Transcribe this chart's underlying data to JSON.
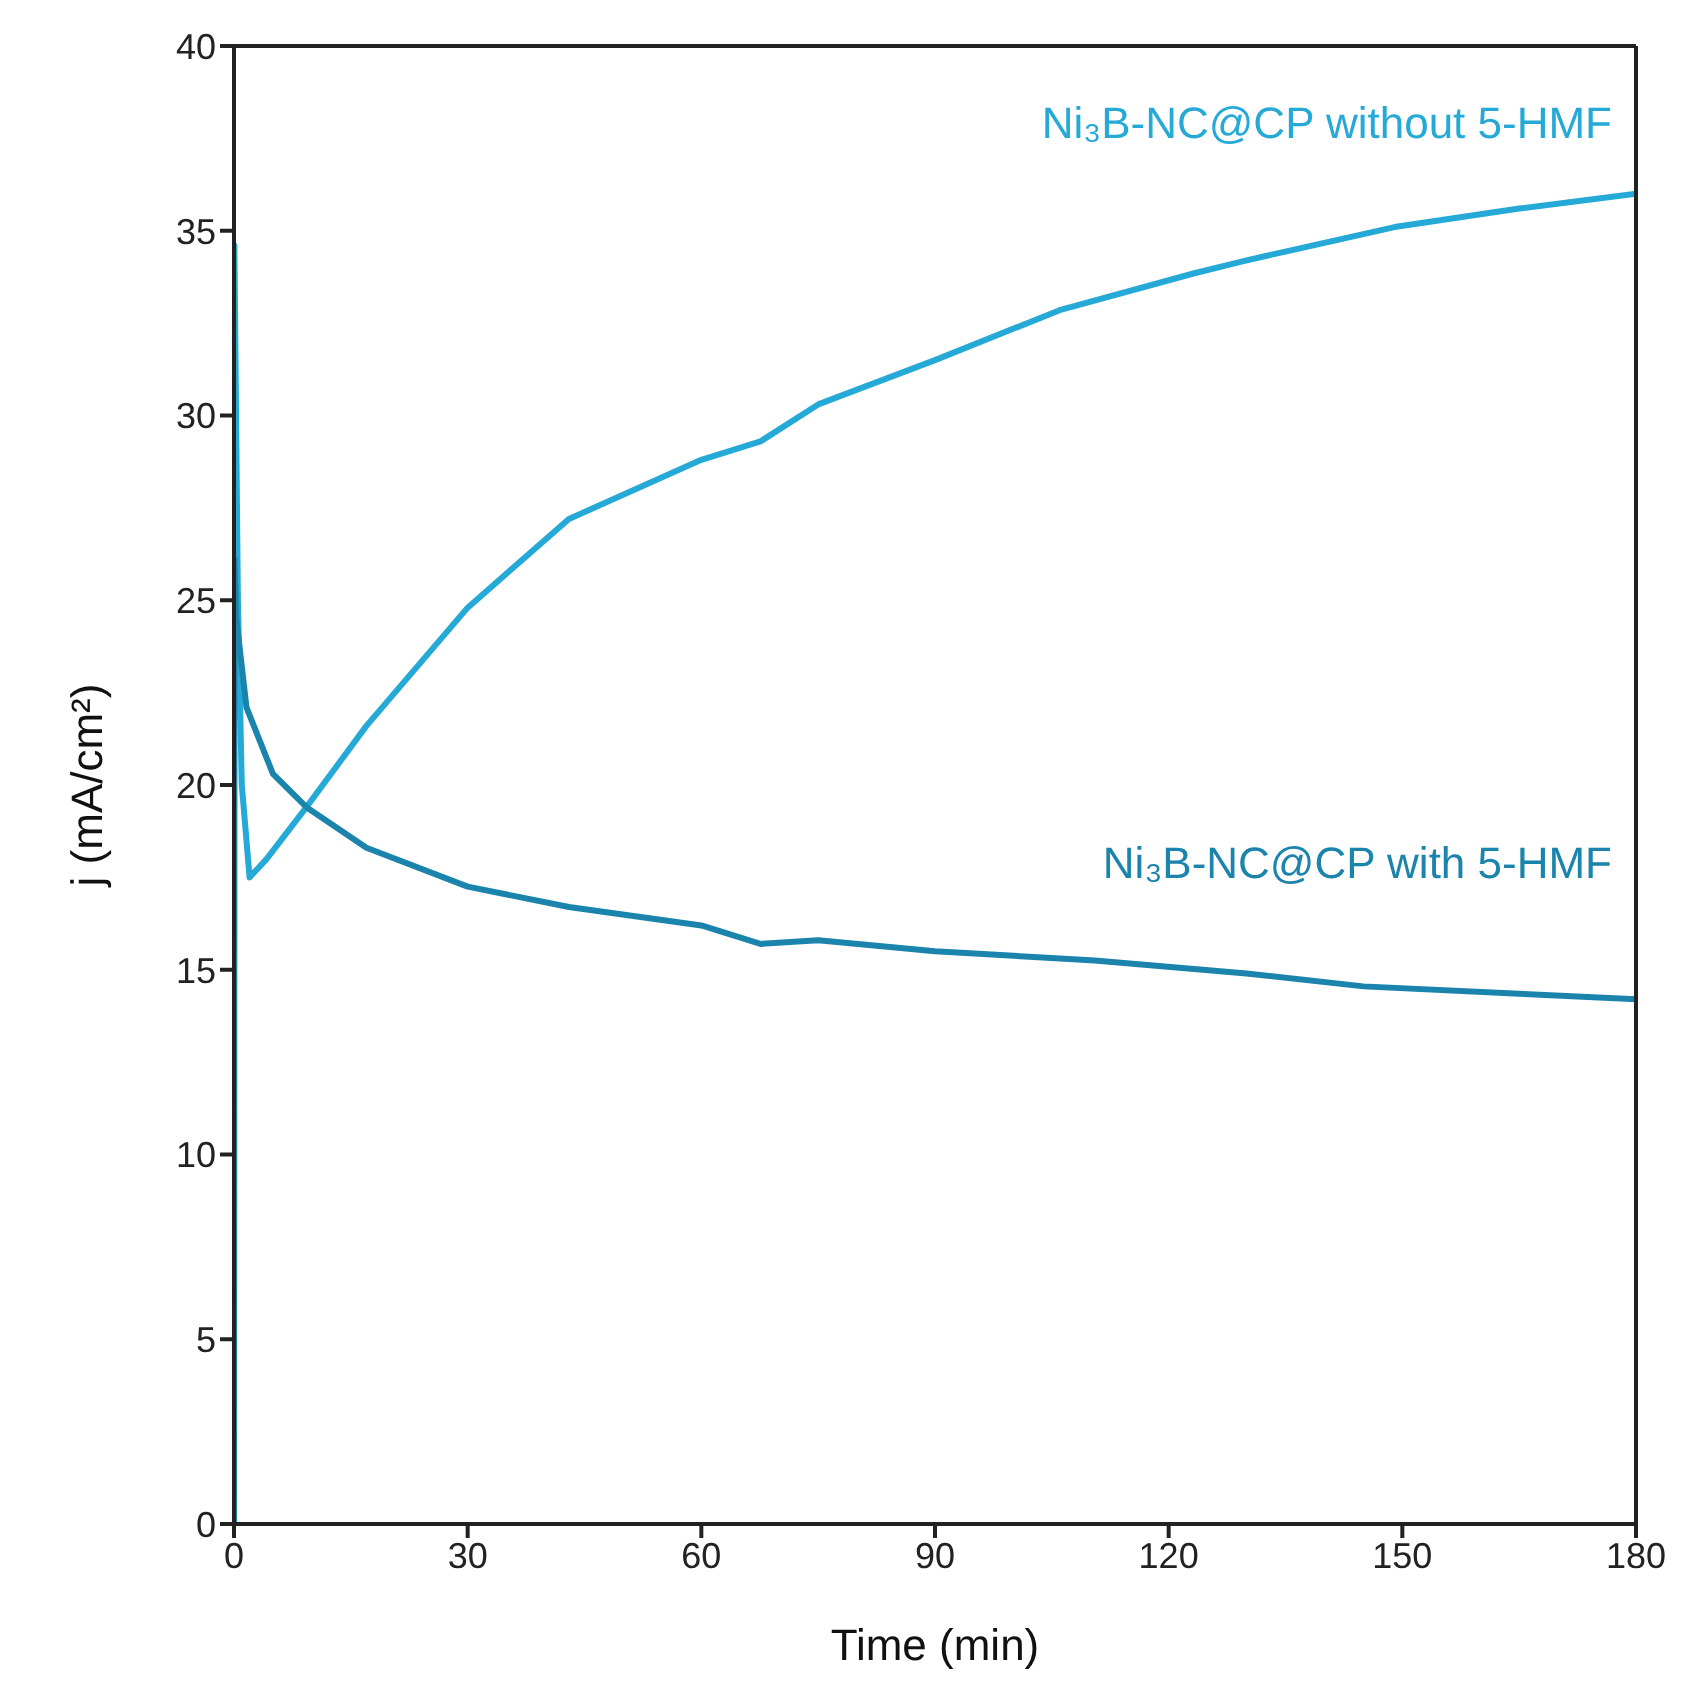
{
  "chart_data": {
    "type": "line",
    "xlabel": "Time (min)",
    "ylabel": "j (mA/cm²)",
    "xlim": [
      0,
      180
    ],
    "xticks": [
      0,
      30,
      60,
      90,
      120,
      150,
      180
    ],
    "ylim": [
      0,
      40
    ],
    "yticks": [
      0,
      5,
      10,
      15,
      20,
      25,
      30,
      35,
      40
    ],
    "marker": "none",
    "line_style": "solid",
    "series": [
      {
        "name": "Ni₃B-NC@CP without 5-HMF",
        "color": "#25a9d6",
        "x": [
          0,
          0.05,
          0.5,
          1,
          2,
          4.2,
          9.3,
          17,
          30,
          43,
          60,
          67.6,
          75,
          90,
          106,
          123.3,
          130,
          149,
          165,
          180
        ],
        "values": [
          0,
          34.6,
          25,
          20,
          17.5,
          18,
          19.4,
          21.6,
          24.8,
          27.2,
          28.8,
          29.3,
          30.3,
          31.5,
          32.85,
          33.85,
          34.2,
          35.1,
          35.6,
          36
        ]
      },
      {
        "name": "Ni₃B-NC@CP with 5-HMF",
        "color": "#1a84ad",
        "x": [
          0,
          0.05,
          0.3,
          1.6,
          5,
          9.3,
          17,
          30,
          43,
          60,
          67.6,
          75,
          90,
          110.5,
          130,
          145,
          165,
          180
        ],
        "values": [
          0,
          26.1,
          24.5,
          22.1,
          20.3,
          19.4,
          18.3,
          17.25,
          16.7,
          16.2,
          15.7,
          15.8,
          15.5,
          15.25,
          14.9,
          14.55,
          14.35,
          14.2
        ]
      }
    ]
  }
}
